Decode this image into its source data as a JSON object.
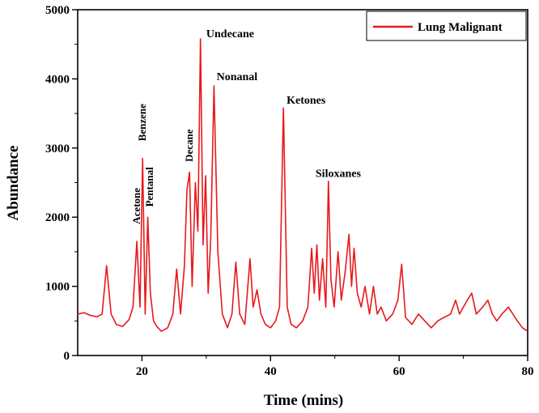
{
  "chart_data": {
    "type": "line",
    "title": "",
    "xlabel": "Time (mins)",
    "ylabel": "Abundance",
    "xlim": [
      10,
      80
    ],
    "ylim": [
      0,
      5000
    ],
    "x_ticks": [
      20,
      40,
      60,
      80
    ],
    "y_ticks": [
      0,
      1000,
      2000,
      3000,
      4000,
      5000
    ],
    "grid": false,
    "legend": {
      "position": "top-right",
      "entries": [
        "Lung Malignant"
      ]
    },
    "colors": {
      "series": "#e8181c",
      "axis": "#000000"
    },
    "series": [
      {
        "name": "Lung Malignant",
        "x": [
          10,
          11,
          12,
          13,
          13.8,
          14.5,
          15.2,
          16,
          17,
          18,
          18.6,
          19.2,
          19.7,
          20.1,
          20.5,
          20.9,
          21.3,
          21.8,
          22.3,
          23,
          24,
          24.8,
          25.4,
          26,
          26.6,
          27,
          27.4,
          27.8,
          28.3,
          28.7,
          29.1,
          29.5,
          29.9,
          30.3,
          30.7,
          31.2,
          31.8,
          32.5,
          33.3,
          34,
          34.6,
          35.2,
          36,
          36.8,
          37.3,
          37.9,
          38.5,
          39.2,
          40,
          40.8,
          41.4,
          42,
          42.6,
          43.2,
          44,
          45,
          45.8,
          46.4,
          46.8,
          47.2,
          47.6,
          48.1,
          48.6,
          49,
          49.4,
          49.9,
          50.5,
          51,
          51.6,
          52.2,
          52.6,
          53,
          53.5,
          54.1,
          54.7,
          55.4,
          56,
          56.6,
          57.2,
          58,
          59,
          59.8,
          60.4,
          61,
          62,
          63,
          64,
          65,
          66,
          67,
          68,
          68.8,
          69.4,
          70,
          70.6,
          71.3,
          72,
          73,
          73.8,
          74.5,
          75.2,
          76,
          77,
          77.7,
          78.4,
          79.2,
          80
        ],
        "values": [
          600,
          620,
          580,
          560,
          600,
          1300,
          600,
          450,
          420,
          520,
          700,
          1650,
          700,
          2850,
          600,
          2000,
          900,
          500,
          420,
          350,
          400,
          600,
          1250,
          600,
          1300,
          2400,
          2650,
          1000,
          2500,
          1800,
          4580,
          1600,
          2600,
          900,
          1700,
          3900,
          1500,
          600,
          400,
          600,
          1350,
          600,
          450,
          1400,
          700,
          950,
          600,
          450,
          400,
          500,
          700,
          3580,
          700,
          450,
          400,
          500,
          700,
          1550,
          900,
          1600,
          800,
          1400,
          700,
          2520,
          1100,
          700,
          1500,
          800,
          1200,
          1750,
          1000,
          1550,
          900,
          700,
          1000,
          600,
          1000,
          600,
          700,
          500,
          600,
          800,
          1320,
          550,
          450,
          600,
          500,
          400,
          500,
          550,
          600,
          800,
          600,
          700,
          800,
          900,
          600,
          700,
          800,
          600,
          500,
          600,
          700,
          600,
          500,
          400,
          350
        ]
      }
    ],
    "annotations": [
      {
        "text": "Acetone",
        "x": 19.2,
        "y": 1900,
        "rotate": true
      },
      {
        "text": "Benzene",
        "x": 20.1,
        "y": 3100,
        "rotate": true
      },
      {
        "text": "Pentanal",
        "x": 21.2,
        "y": 2150,
        "rotate": true
      },
      {
        "text": "Decane",
        "x": 27.4,
        "y": 2800,
        "rotate": true
      },
      {
        "text": "Undecane",
        "x": 30.0,
        "y": 4600,
        "rotate": false
      },
      {
        "text": "Nonanal",
        "x": 31.6,
        "y": 3980,
        "rotate": false
      },
      {
        "text": "Ketones",
        "x": 42.5,
        "y": 3640,
        "rotate": false
      },
      {
        "text": "Siloxanes",
        "x": 47.0,
        "y": 2580,
        "rotate": false
      }
    ]
  }
}
